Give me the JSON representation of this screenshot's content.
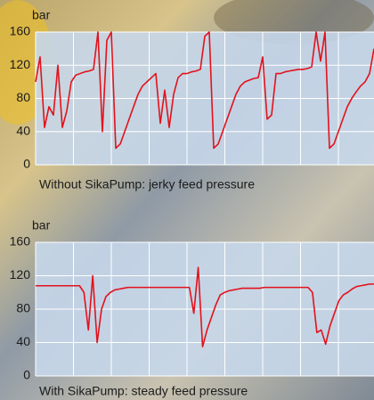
{
  "chart_data": [
    {
      "type": "line",
      "y_label": "bar",
      "caption": "Without SikaPump: jerky feed pressure",
      "color": "#e3121c",
      "ylim": [
        0,
        160
      ],
      "yticks": [
        0,
        40,
        80,
        120,
        160
      ],
      "grid": true,
      "values": [
        100,
        130,
        45,
        70,
        60,
        120,
        45,
        65,
        100,
        108,
        110,
        112,
        113,
        115,
        160,
        40,
        150,
        160,
        20,
        25,
        40,
        55,
        70,
        85,
        95,
        100,
        105,
        110,
        50,
        90,
        45,
        85,
        105,
        110,
        110,
        112,
        113,
        115,
        155,
        160,
        20,
        25,
        40,
        55,
        70,
        85,
        95,
        100,
        102,
        104,
        105,
        130,
        55,
        60,
        110,
        110,
        112,
        113,
        114,
        115,
        115,
        116,
        118,
        160,
        125,
        160,
        20,
        25,
        40,
        55,
        70,
        80,
        88,
        95,
        100,
        110,
        140
      ]
    },
    {
      "type": "line",
      "y_label": "bar",
      "caption": "With SikaPump: steady feed pressure",
      "color": "#e3121c",
      "ylim": [
        0,
        160
      ],
      "yticks": [
        0,
        40,
        80,
        120,
        160
      ],
      "grid": true,
      "values": [
        108,
        108,
        108,
        108,
        108,
        108,
        108,
        108,
        108,
        108,
        108,
        100,
        55,
        120,
        40,
        80,
        95,
        100,
        103,
        104,
        105,
        106,
        106,
        106,
        106,
        106,
        106,
        106,
        106,
        106,
        106,
        106,
        106,
        106,
        106,
        106,
        75,
        130,
        35,
        55,
        70,
        85,
        97,
        100,
        102,
        103,
        104,
        105,
        105,
        105,
        105,
        105,
        106,
        106,
        106,
        106,
        106,
        106,
        106,
        106,
        106,
        106,
        106,
        100,
        52,
        55,
        38,
        60,
        75,
        90,
        97,
        100,
        104,
        107,
        108,
        109,
        110,
        110
      ]
    }
  ]
}
